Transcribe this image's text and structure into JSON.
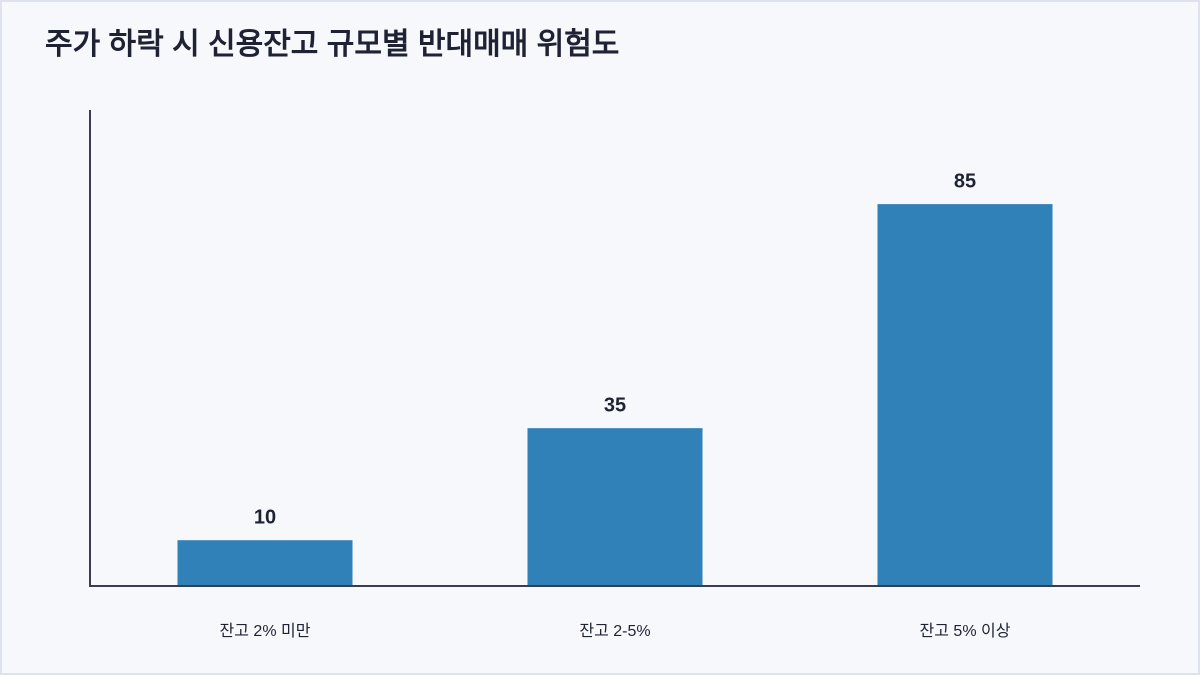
{
  "chart_data": {
    "type": "bar",
    "title": "주가 하락 시 신용잔고 규모별 반대매매 위험도",
    "categories": [
      "잔고 2% 미만",
      "잔고 2-5%",
      "잔고 5% 이상"
    ],
    "values": [
      10,
      35,
      85
    ],
    "color": "#3181b9",
    "ylim": [
      0,
      106
    ]
  }
}
